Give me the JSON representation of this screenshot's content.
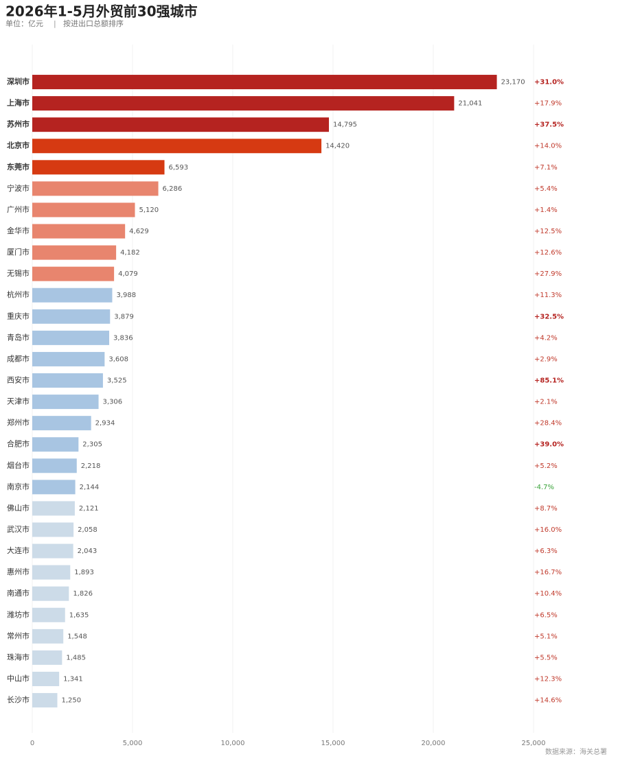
{
  "chart_data": {
    "type": "bar",
    "orientation": "horizontal",
    "title": "2026年1-5月外贸前30强城市",
    "subtitle": [
      "单位：亿元",
      "按进出口总额排序"
    ],
    "source": "数据来源：海关总署",
    "categories": [
      "深圳市",
      "上海市",
      "苏州市",
      "北京市",
      "东莞市",
      "宁波市",
      "广州市",
      "金华市",
      "厦门市",
      "无锡市",
      "杭州市",
      "重庆市",
      "青岛市",
      "成都市",
      "西安市",
      "天津市",
      "郑州市",
      "合肥市",
      "烟台市",
      "南京市",
      "佛山市",
      "武汉市",
      "大连市",
      "惠州市",
      "南通市",
      "潍坊市",
      "常州市",
      "珠海市",
      "中山市",
      "长沙市"
    ],
    "values": [
      23170,
      21041,
      14795,
      14420,
      6593,
      6286,
      5120,
      4629,
      4182,
      4079,
      3988,
      3879,
      3836,
      3608,
      3525,
      3306,
      2934,
      2305,
      2218,
      2144,
      2121,
      2058,
      2043,
      1893,
      1826,
      1635,
      1548,
      1485,
      1341,
      1250
    ],
    "value_labels": [
      "23,170",
      "21,041",
      "14,795",
      "14,420",
      "6,593",
      "6,286",
      "5,120",
      "4,629",
      "4,182",
      "4,079",
      "3,988",
      "3,879",
      "3,836",
      "3,608",
      "3,525",
      "3,306",
      "2,934",
      "2,305",
      "2,218",
      "2,144",
      "2,121",
      "2,058",
      "2,043",
      "1,893",
      "1,826",
      "1,635",
      "1,548",
      "1,485",
      "1,341",
      "1,250"
    ],
    "colors": [
      "#b52320",
      "#b52320",
      "#b52320",
      "#d63a12",
      "#d63a12",
      "#e8856e",
      "#e8856e",
      "#e8856e",
      "#e8856e",
      "#e8856e",
      "#a8c5e2",
      "#a8c5e2",
      "#a8c5e2",
      "#a8c5e2",
      "#a8c5e2",
      "#a8c5e2",
      "#a8c5e2",
      "#a8c5e2",
      "#a8c5e2",
      "#a8c5e2",
      "#ccdbe8",
      "#ccdbe8",
      "#ccdbe8",
      "#ccdbe8",
      "#ccdbe8",
      "#ccdbe8",
      "#ccdbe8",
      "#ccdbe8",
      "#ccdbe8",
      "#ccdbe8"
    ],
    "bold_top": 5,
    "growth": [
      31.0,
      17.9,
      37.5,
      14.0,
      7.1,
      5.4,
      1.4,
      12.5,
      12.6,
      27.9,
      11.3,
      32.5,
      4.2,
      2.9,
      85.1,
      2.1,
      28.4,
      39.0,
      5.2,
      -4.7,
      8.7,
      16.0,
      6.3,
      16.7,
      10.4,
      6.5,
      5.1,
      5.5,
      12.3,
      14.6
    ],
    "growth_labels": [
      "+31.0%",
      "+17.9%",
      "+37.5%",
      "+14.0%",
      "+7.1%",
      "+5.4%",
      "+1.4%",
      "+12.5%",
      "+12.6%",
      "+27.9%",
      "+11.3%",
      "+32.5%",
      "+4.2%",
      "+2.9%",
      "+85.1%",
      "+2.1%",
      "+28.4%",
      "+39.0%",
      "+5.2%",
      "-4.7%",
      "+8.7%",
      "+16.0%",
      "+6.3%",
      "+16.7%",
      "+10.4%",
      "+6.5%",
      "+5.1%",
      "+5.5%",
      "+12.3%",
      "+14.6%"
    ],
    "growth_style": {
      "positive_color": "#c0392b",
      "strong_color": "#b52320",
      "negative_color": "#3aa33a",
      "bold_from": 30
    },
    "xlim": [
      0,
      25000
    ],
    "xticks": [
      0,
      {
        "value": 5000,
        "label": "5,000"
      },
      {
        "value": 10000,
        "label": "10,000"
      },
      {
        "value": 15000,
        "label": "15,000"
      },
      {
        "value": 20000,
        "label": "20,000"
      },
      {
        "value": 25000,
        "label": "25,000"
      }
    ],
    "grid": true
  }
}
